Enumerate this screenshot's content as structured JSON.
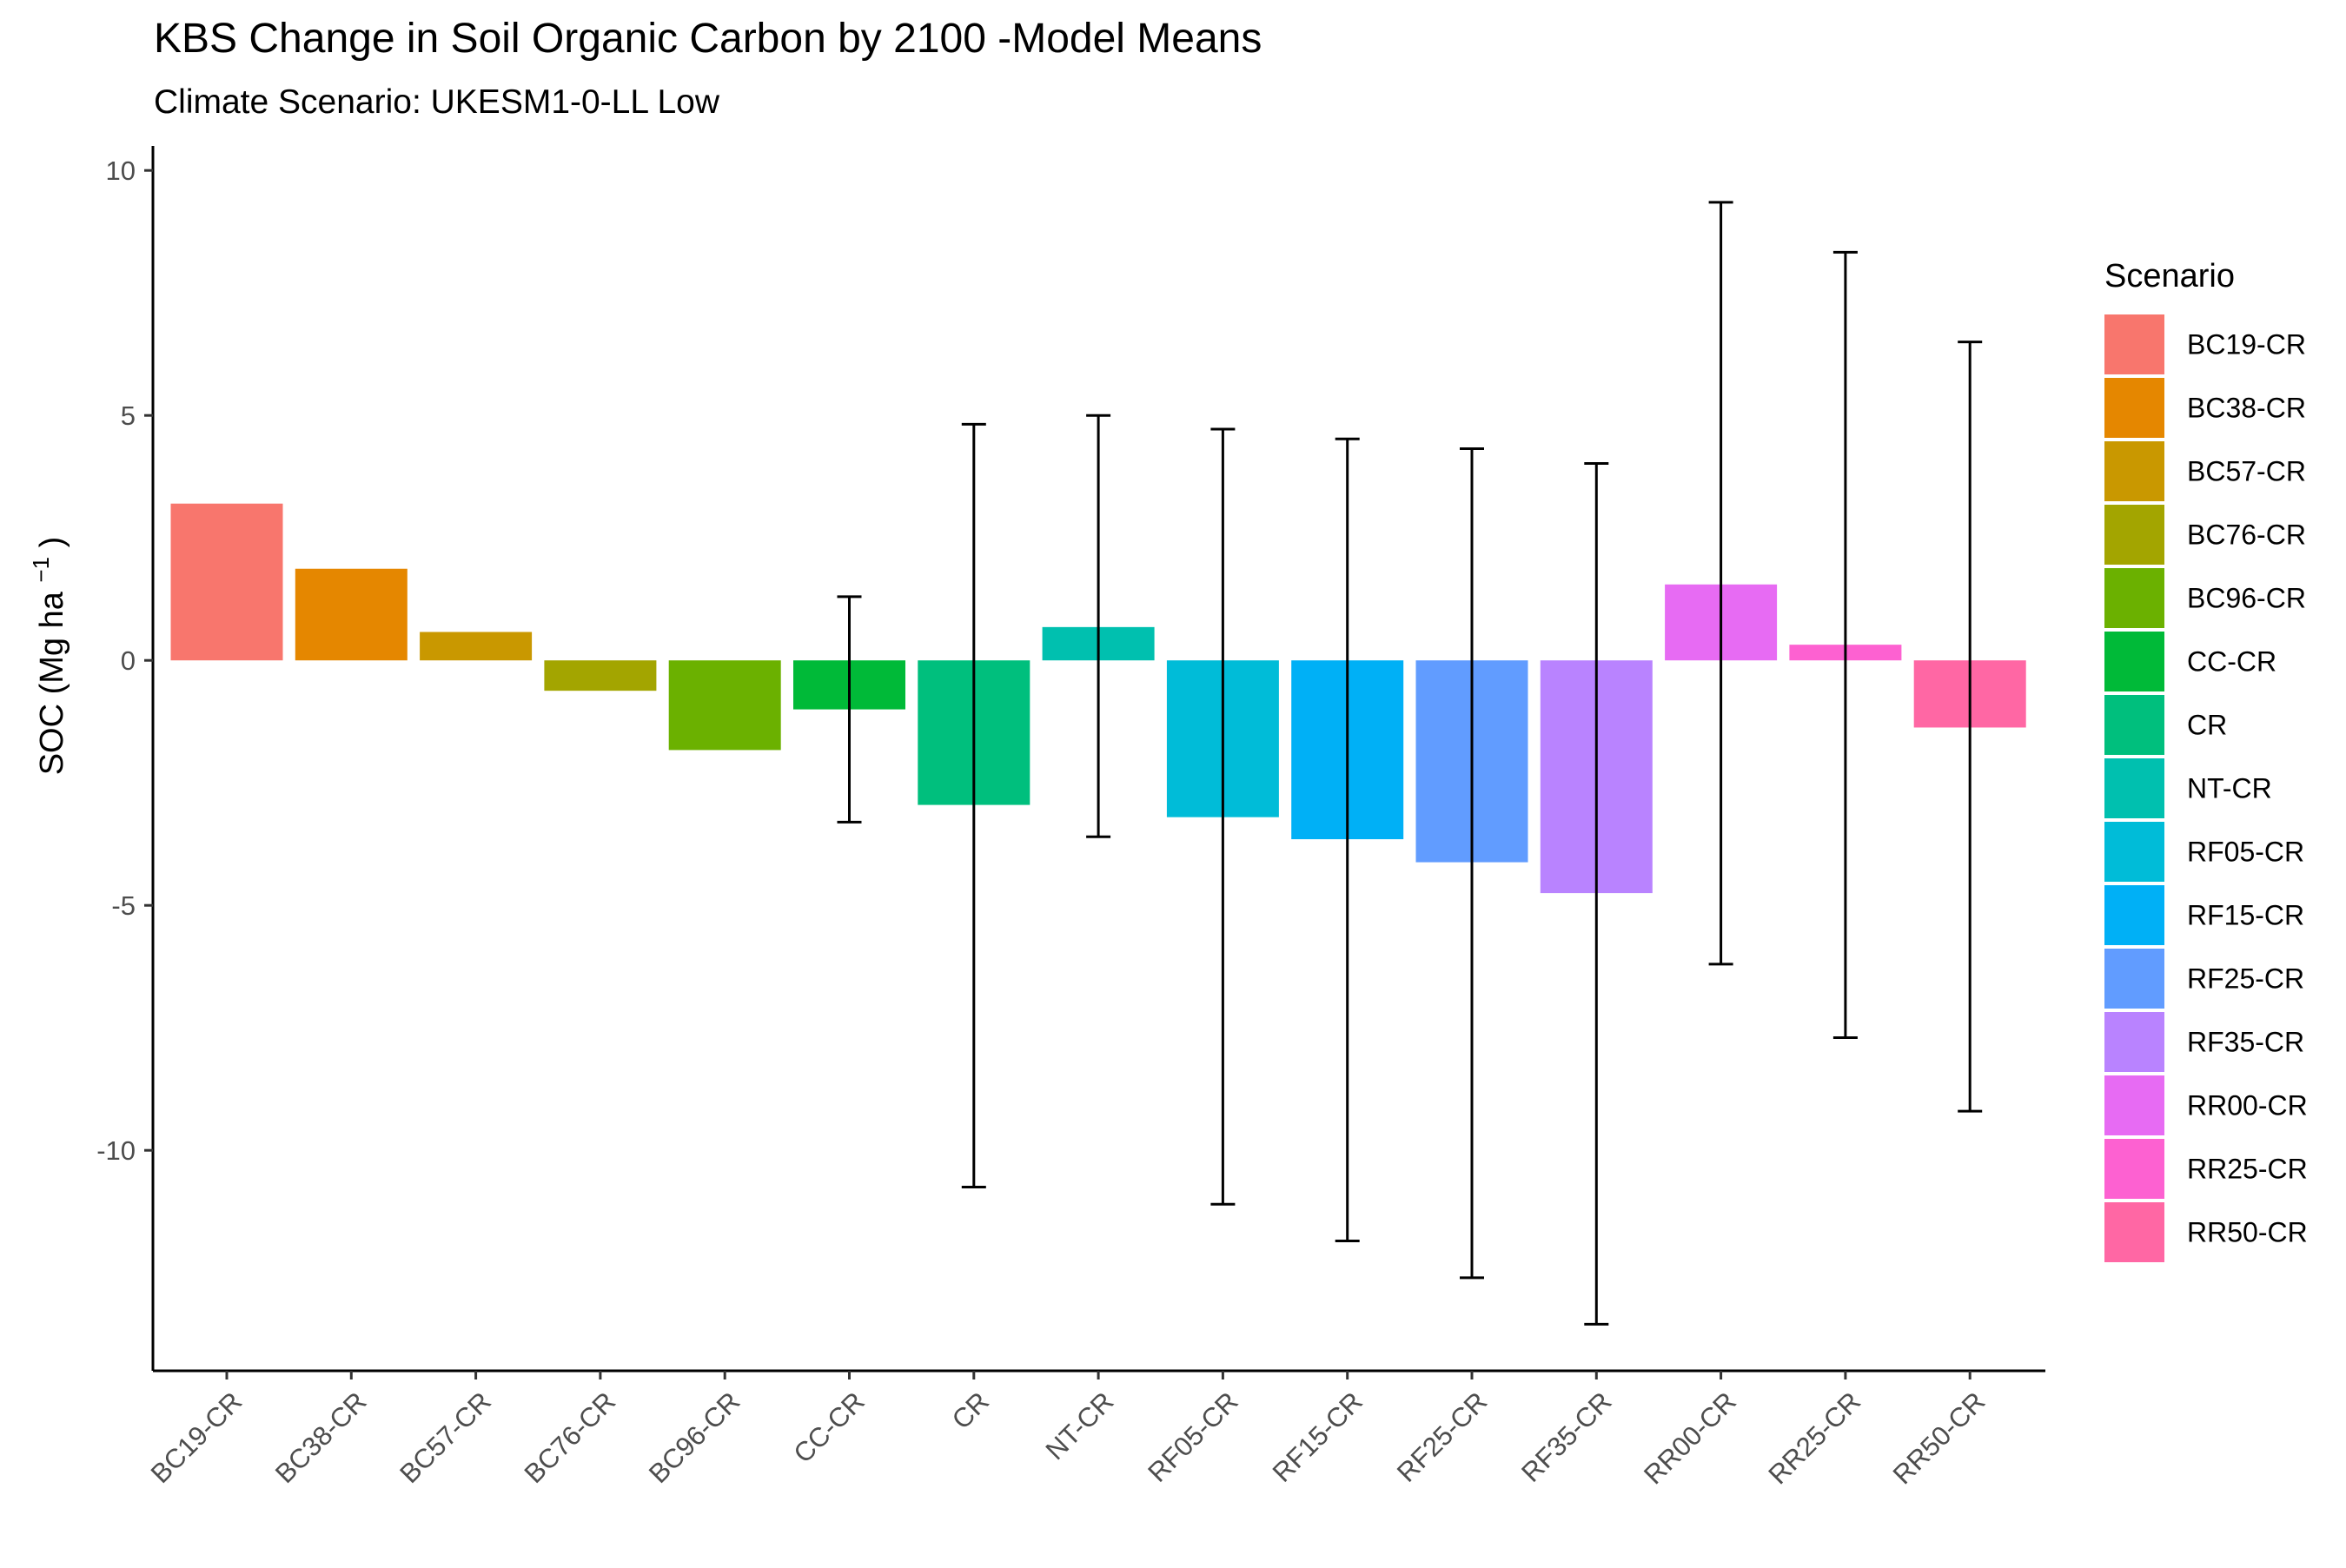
{
  "chart_data": {
    "type": "bar",
    "title": "KBS Change in Soil Organic Carbon by  2100 -Model Means",
    "subtitle": "Climate Scenario: UKESM1-0-LL Low",
    "ylabel": {
      "main": "SOC (Mg ha",
      "superscript": "−1",
      "close": ")"
    },
    "xlabel": "",
    "ylim": [
      -14.5,
      10.5
    ],
    "yticks": [
      -10,
      -5,
      0,
      5,
      10
    ],
    "ytick_labels": [
      "-10",
      "-5",
      "0",
      "5",
      "10"
    ],
    "grid": false,
    "legend": {
      "title": "Scenario",
      "placement": "right"
    },
    "categories": [
      "BC19-CR",
      "BC38-CR",
      "BC57-CR",
      "BC76-CR",
      "BC96-CR",
      "CC-CR",
      "CR",
      "NT-CR",
      "RF05-CR",
      "RF15-CR",
      "RF25-CR",
      "RF35-CR",
      "RR00-CR",
      "RR25-CR",
      "RR50-CR"
    ],
    "values": [
      3.2,
      1.87,
      0.58,
      -0.62,
      -1.83,
      -1.0,
      -2.95,
      0.68,
      -3.2,
      -3.65,
      -4.12,
      -4.75,
      1.55,
      0.32,
      -1.37
    ],
    "error_low": [
      null,
      null,
      null,
      null,
      null,
      -3.3,
      -10.75,
      -3.6,
      -11.1,
      -11.85,
      -12.6,
      -13.55,
      -6.2,
      -7.7,
      -9.2
    ],
    "error_high": [
      null,
      null,
      null,
      null,
      null,
      1.3,
      4.82,
      5.0,
      4.72,
      4.52,
      4.32,
      4.02,
      9.35,
      8.33,
      6.5
    ],
    "colors": [
      "#F8766D",
      "#E58700",
      "#C99800",
      "#A3A500",
      "#6BB100",
      "#00BA38",
      "#00BF7D",
      "#00C0AF",
      "#00BCD8",
      "#00B0F6",
      "#619CFF",
      "#B983FF",
      "#E76BF3",
      "#FD61D1",
      "#FF67A4"
    ]
  }
}
